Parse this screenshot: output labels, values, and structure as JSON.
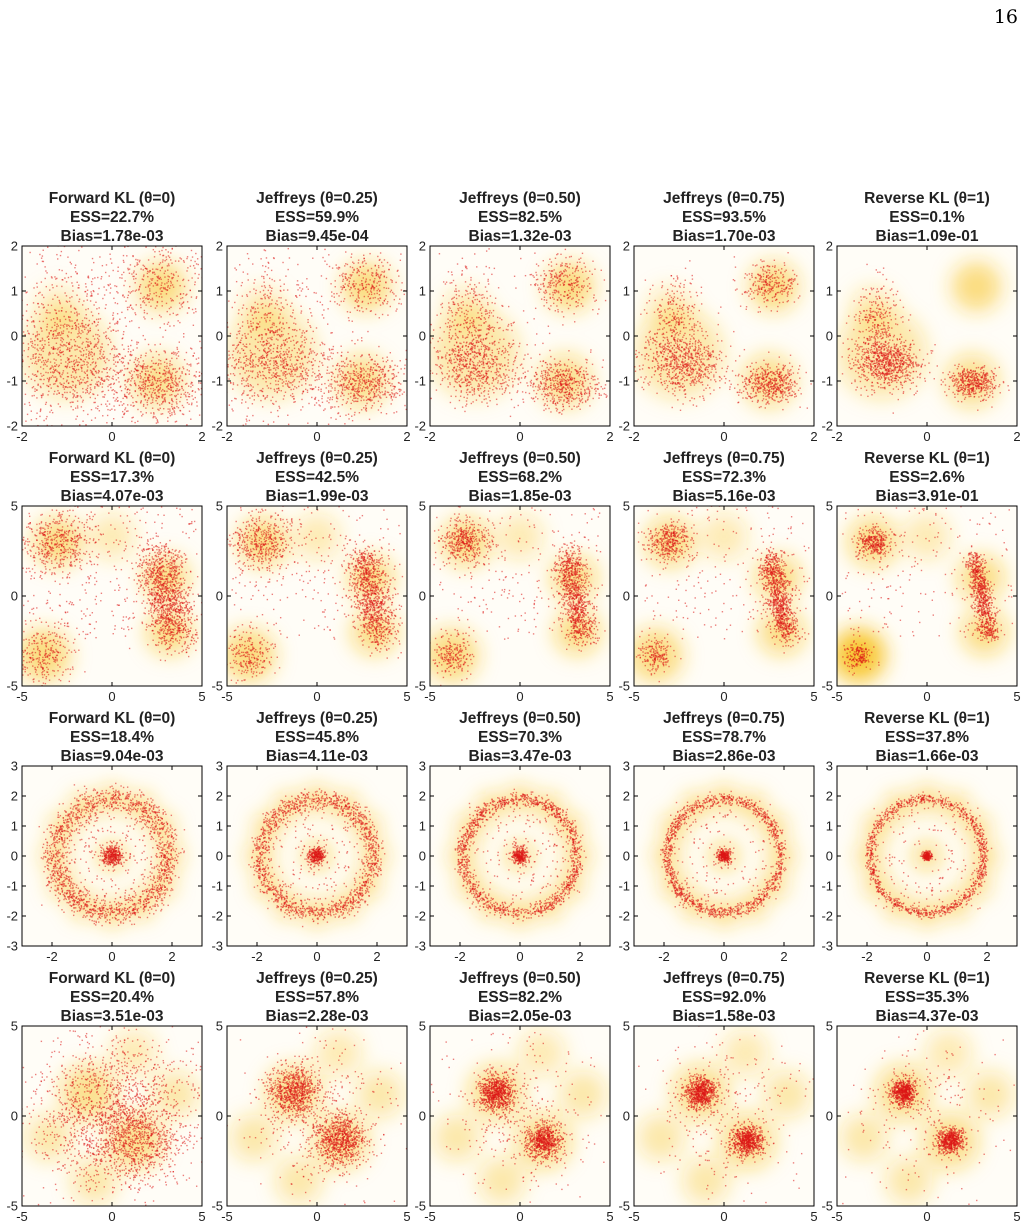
{
  "page": {
    "number": "16"
  },
  "colors": {
    "density_low": "#fffdf7",
    "density_mid": "#fde7a0",
    "density_high": "#f7c21c",
    "sample_point": "#dd1515",
    "axis": "#000000"
  },
  "chart_data": [
    {
      "type": "scatter",
      "row": "two-moons",
      "title_lines": [
        "Forward KL (θ=0)",
        "ESS=22.7%",
        "Bias=1.78e-03"
      ],
      "xlim": [
        -2,
        2
      ],
      "ylim": [
        -2,
        2
      ],
      "xticks": [
        -2,
        0,
        2
      ],
      "yticks": [
        -2,
        -1,
        0,
        1,
        2
      ],
      "series": [
        {
          "values_shown": "sample cloud"
        }
      ]
    },
    {
      "type": "scatter",
      "row": "two-moons",
      "title_lines": [
        "Jeffreys (θ=0.25)",
        "ESS=59.9%",
        "Bias=9.45e-04"
      ],
      "xlim": [
        -2,
        2
      ],
      "ylim": [
        -2,
        2
      ],
      "xticks": [
        -2,
        0,
        2
      ],
      "yticks": [
        -2,
        -1,
        0,
        1,
        2
      ]
    },
    {
      "type": "scatter",
      "row": "two-moons",
      "title_lines": [
        "Jeffreys (θ=0.50)",
        "ESS=82.5%",
        "Bias=1.32e-03"
      ],
      "xlim": [
        -2,
        2
      ],
      "ylim": [
        -2,
        2
      ],
      "xticks": [
        -2,
        0,
        2
      ],
      "yticks": [
        -2,
        -1,
        0,
        1,
        2
      ]
    },
    {
      "type": "scatter",
      "row": "two-moons",
      "title_lines": [
        "Jeffreys (θ=0.75)",
        "ESS=93.5%",
        "Bias=1.70e-03"
      ],
      "xlim": [
        -2,
        2
      ],
      "ylim": [
        -2,
        2
      ],
      "xticks": [
        -2,
        0,
        2
      ],
      "yticks": [
        -2,
        -1,
        0,
        1,
        2
      ]
    },
    {
      "type": "scatter",
      "row": "two-moons",
      "title_lines": [
        "Reverse KL (θ=1)",
        "ESS=0.1%",
        "Bias=1.09e-01"
      ],
      "xlim": [
        -2,
        2
      ],
      "ylim": [
        -2,
        2
      ],
      "xticks": [
        -2,
        0,
        2
      ],
      "yticks": [
        -2,
        -1,
        0,
        1,
        2
      ]
    },
    {
      "type": "scatter",
      "row": "bridge",
      "title_lines": [
        "Forward KL (θ=0)",
        "ESS=17.3%",
        "Bias=4.07e-03"
      ],
      "xlim": [
        -5,
        5
      ],
      "ylim": [
        -5,
        5
      ],
      "xticks": [
        -5,
        0,
        5
      ],
      "yticks": [
        -5,
        0,
        5
      ]
    },
    {
      "type": "scatter",
      "row": "bridge",
      "title_lines": [
        "Jeffreys (θ=0.25)",
        "ESS=42.5%",
        "Bias=1.99e-03"
      ],
      "xlim": [
        -5,
        5
      ],
      "ylim": [
        -5,
        5
      ],
      "xticks": [
        -5,
        0,
        5
      ],
      "yticks": [
        -5,
        0,
        5
      ]
    },
    {
      "type": "scatter",
      "row": "bridge",
      "title_lines": [
        "Jeffreys (θ=0.50)",
        "ESS=68.2%",
        "Bias=1.85e-03"
      ],
      "xlim": [
        -5,
        5
      ],
      "ylim": [
        -5,
        5
      ],
      "xticks": [
        -5,
        0,
        5
      ],
      "yticks": [
        -5,
        0,
        5
      ]
    },
    {
      "type": "scatter",
      "row": "bridge",
      "title_lines": [
        "Jeffreys (θ=0.75)",
        "ESS=72.3%",
        "Bias=5.16e-03"
      ],
      "xlim": [
        -5,
        5
      ],
      "ylim": [
        -5,
        5
      ],
      "xticks": [
        -5,
        0,
        5
      ],
      "yticks": [
        -5,
        0,
        5
      ]
    },
    {
      "type": "scatter",
      "row": "bridge",
      "title_lines": [
        "Reverse KL (θ=1)",
        "ESS=2.6%",
        "Bias=3.91e-01"
      ],
      "xlim": [
        -5,
        5
      ],
      "ylim": [
        -5,
        5
      ],
      "xticks": [
        -5,
        0,
        5
      ],
      "yticks": [
        -5,
        0,
        5
      ]
    },
    {
      "type": "scatter",
      "row": "ring",
      "title_lines": [
        "Forward KL (θ=0)",
        "ESS=18.4%",
        "Bias=9.04e-03"
      ],
      "xlim": [
        -3,
        3
      ],
      "ylim": [
        -3,
        3
      ],
      "xticks": [
        -2,
        0,
        2
      ],
      "yticks": [
        -3,
        -2,
        -1,
        0,
        1,
        2,
        3
      ]
    },
    {
      "type": "scatter",
      "row": "ring",
      "title_lines": [
        "Jeffreys (θ=0.25)",
        "ESS=45.8%",
        "Bias=4.11e-03"
      ],
      "xlim": [
        -3,
        3
      ],
      "ylim": [
        -3,
        3
      ],
      "xticks": [
        -2,
        0,
        2
      ],
      "yticks": [
        -3,
        -2,
        -1,
        0,
        1,
        2,
        3
      ]
    },
    {
      "type": "scatter",
      "row": "ring",
      "title_lines": [
        "Jeffreys (θ=0.50)",
        "ESS=70.3%",
        "Bias=3.47e-03"
      ],
      "xlim": [
        -3,
        3
      ],
      "ylim": [
        -3,
        3
      ],
      "xticks": [
        -2,
        0,
        2
      ],
      "yticks": [
        -3,
        -2,
        -1,
        0,
        1,
        2,
        3
      ]
    },
    {
      "type": "scatter",
      "row": "ring",
      "title_lines": [
        "Jeffreys (θ=0.75)",
        "ESS=78.7%",
        "Bias=2.86e-03"
      ],
      "xlim": [
        -3,
        3
      ],
      "ylim": [
        -3,
        3
      ],
      "xticks": [
        -2,
        0,
        2
      ],
      "yticks": [
        -3,
        -2,
        -1,
        0,
        1,
        2,
        3
      ]
    },
    {
      "type": "scatter",
      "row": "ring",
      "title_lines": [
        "Reverse KL (θ=1)",
        "ESS=37.8%",
        "Bias=1.66e-03"
      ],
      "xlim": [
        -3,
        3
      ],
      "ylim": [
        -3,
        3
      ],
      "xticks": [
        -2,
        0,
        2
      ],
      "yticks": [
        -3,
        -2,
        -1,
        0,
        1,
        2,
        3
      ]
    },
    {
      "type": "scatter",
      "row": "diagonal",
      "title_lines": [
        "Forward KL (θ=0)",
        "ESS=20.4%",
        "Bias=3.51e-03"
      ],
      "xlim": [
        -5,
        5
      ],
      "ylim": [
        -5,
        5
      ],
      "xticks": [
        -5,
        0,
        5
      ],
      "yticks": [
        -5,
        0,
        5
      ]
    },
    {
      "type": "scatter",
      "row": "diagonal",
      "title_lines": [
        "Jeffreys (θ=0.25)",
        "ESS=57.8%",
        "Bias=2.28e-03"
      ],
      "xlim": [
        -5,
        5
      ],
      "ylim": [
        -5,
        5
      ],
      "xticks": [
        -5,
        0,
        5
      ],
      "yticks": [
        -5,
        0,
        5
      ]
    },
    {
      "type": "scatter",
      "row": "diagonal",
      "title_lines": [
        "Jeffreys (θ=0.50)",
        "ESS=82.2%",
        "Bias=2.05e-03"
      ],
      "xlim": [
        -5,
        5
      ],
      "ylim": [
        -5,
        5
      ],
      "xticks": [
        -5,
        0,
        5
      ],
      "yticks": [
        -5,
        0,
        5
      ]
    },
    {
      "type": "scatter",
      "row": "diagonal",
      "title_lines": [
        "Jeffreys (θ=0.75)",
        "ESS=92.0%",
        "Bias=1.58e-03"
      ],
      "xlim": [
        -5,
        5
      ],
      "ylim": [
        -5,
        5
      ],
      "xticks": [
        -5,
        0,
        5
      ],
      "yticks": [
        -5,
        0,
        5
      ]
    },
    {
      "type": "scatter",
      "row": "diagonal",
      "title_lines": [
        "Reverse KL (θ=1)",
        "ESS=35.3%",
        "Bias=4.37e-03"
      ],
      "xlim": [
        -5,
        5
      ],
      "ylim": [
        -5,
        5
      ],
      "xticks": [
        -5,
        0,
        5
      ],
      "yticks": [
        -5,
        0,
        5
      ]
    }
  ]
}
